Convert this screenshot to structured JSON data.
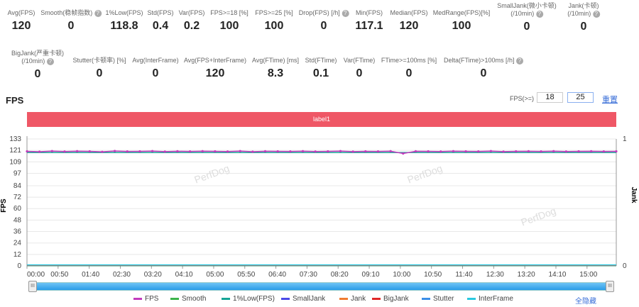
{
  "stats_row1": [
    {
      "label": "Avg(FPS)",
      "value": "120",
      "help": false
    },
    {
      "label": "Smooth(稳帧指数)",
      "value": "0",
      "help": true
    },
    {
      "label": "1%Low(FPS)",
      "value": "118.8",
      "help": false
    },
    {
      "label": "Std(FPS)",
      "value": "0.4",
      "help": false
    },
    {
      "label": "Var(FPS)",
      "value": "0.2",
      "help": false
    },
    {
      "label": "FPS>=18 [%]",
      "value": "100",
      "help": false
    },
    {
      "label": "FPS>=25 [%]",
      "value": "100",
      "help": false
    },
    {
      "label": "Drop(FPS) [/h]",
      "value": "0",
      "help": true
    },
    {
      "label": "Min(FPS)",
      "value": "117.1",
      "help": false
    },
    {
      "label": "Median(FPS)",
      "value": "120",
      "help": false
    },
    {
      "label": "MedRange(FPS)[%]",
      "value": "100",
      "help": false
    },
    {
      "label": "SmallJank(微小卡顿)",
      "label2": "(/10min)",
      "value": "0",
      "help": true
    },
    {
      "label": "Jank(卡顿)",
      "label2": "(/10min)",
      "value": "0",
      "help": true
    }
  ],
  "stats_row2": [
    {
      "label": "BigJank(严重卡顿)",
      "label2": "(/10min)",
      "value": "0",
      "help": true
    },
    {
      "label": "Stutter(卡顿率) [%]",
      "value": "0",
      "help": false
    },
    {
      "label": "Avg(InterFrame)",
      "value": "0",
      "help": false
    },
    {
      "label": "Avg(FPS+InterFrame)",
      "value": "120",
      "help": false
    },
    {
      "label": "Avg(FTime) [ms]",
      "value": "8.3",
      "help": false
    },
    {
      "label": "Std(FTime)",
      "value": "0.1",
      "help": false
    },
    {
      "label": "Var(FTime)",
      "value": "0",
      "help": false
    },
    {
      "label": "FTime>=100ms [%]",
      "value": "0",
      "help": false
    },
    {
      "label": "Delta(FTime)>100ms [/h]",
      "value": "0",
      "help": true
    }
  ],
  "help_glyph": "?",
  "chart_title": "FPS",
  "threshold": {
    "label": "FPS(>=)",
    "low": "18",
    "high": "25",
    "reset": "重置"
  },
  "label_bar": "label1",
  "watermark": "PerfDog",
  "slider_grip": "III",
  "hide_all": "全隐藏",
  "chart_data": {
    "type": "line",
    "title": "FPS",
    "ylabel": "FPS",
    "y2label": "Jank",
    "yticks": [
      "133",
      "121",
      "109",
      "97",
      "84",
      "72",
      "60",
      "48",
      "36",
      "24",
      "12",
      "0"
    ],
    "ylim": [
      0,
      133
    ],
    "y2ticks": [
      "1",
      "0"
    ],
    "xticks": [
      "00:00",
      "00:50",
      "01:40",
      "02:30",
      "03:20",
      "04:10",
      "05:00",
      "05:50",
      "06:40",
      "07:30",
      "08:20",
      "09:10",
      "10:00",
      "10:50",
      "11:40",
      "12:30",
      "13:20",
      "14:10",
      "15:00"
    ],
    "xlim_seconds": [
      0,
      947
    ],
    "series": [
      {
        "name": "FPS",
        "color": "#c33bbd",
        "values": [
          120,
          119.6,
          120.3,
          119.8,
          120.2,
          120,
          119.5,
          120.4,
          119.9,
          120,
          120.3,
          119.7,
          120.1,
          119.9,
          120.2,
          120,
          119.8,
          120.3,
          119.6,
          120.1,
          120,
          119.9,
          120.2,
          119.8,
          120,
          120.3,
          119.7,
          120,
          119.9,
          120.2,
          117.8,
          120.1,
          120,
          119.8,
          120.2,
          120,
          119.9,
          120.3,
          119.7,
          120,
          120.1,
          119.9,
          120.2,
          119.8,
          120,
          120.1,
          119.9,
          120
        ]
      },
      {
        "name": "Smooth",
        "color": "#3cb44b",
        "values": [
          0
        ]
      },
      {
        "name": "1%Low(FPS)",
        "color": "#16a596",
        "values": [
          118.8
        ]
      },
      {
        "name": "SmallJank",
        "color": "#4a4ae8",
        "values": [
          0
        ]
      },
      {
        "name": "Jank",
        "color": "#f07c30",
        "values": [
          0
        ]
      },
      {
        "name": "BigJank",
        "color": "#e02828",
        "values": [
          0
        ]
      },
      {
        "name": "Stutter",
        "color": "#3b8fe8",
        "values": [
          0
        ]
      },
      {
        "name": "InterFrame",
        "color": "#29c9e0",
        "values": [
          0
        ]
      }
    ]
  }
}
